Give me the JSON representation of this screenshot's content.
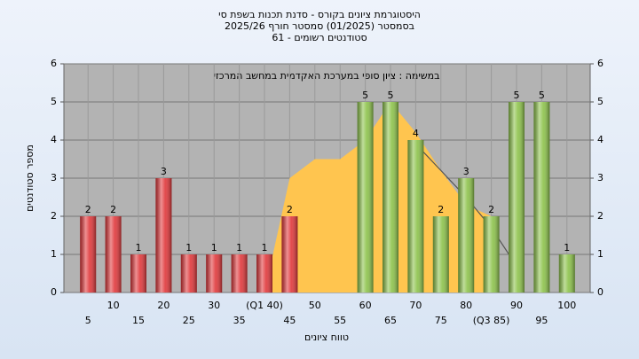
{
  "chart_data": {
    "type": "bar",
    "title": "היסטוגרמת ציונים בקורס - סדנת תכנות בשפת סי",
    "subtitle": [
      "בסמסטר  (01/2025)  סמסטר חורף 2025/26",
      "סטודנטים רשומים - 61"
    ],
    "annotation": "במשימה : ציון סופי במערכת האקדמית במחשב המרכזי",
    "x_label": "טווח ציונים",
    "y_label": "מספר סטודנטים",
    "categories": [
      "5",
      "10",
      "15",
      "20",
      "25",
      "30",
      "35",
      "(Q1 40)",
      "45",
      "50",
      "55",
      "60",
      "65",
      "70",
      "75",
      "80",
      "(Q3 85)",
      "90",
      "95",
      "100"
    ],
    "series": [
      {
        "type": "area",
        "color": "#ffc54f",
        "values": [
          null,
          null,
          null,
          null,
          null,
          null,
          null,
          0,
          3,
          3.5,
          3.5,
          4,
          5,
          4.2,
          3.2,
          2.3,
          2,
          null,
          null,
          null
        ]
      },
      {
        "type": "line",
        "color": "#555555",
        "values": [
          null,
          null,
          null,
          null,
          null,
          null,
          null,
          null,
          null,
          null,
          null,
          null,
          null,
          3.9,
          3.2,
          2.5,
          1.7,
          0.7,
          null,
          null
        ]
      },
      {
        "type": "bar",
        "color": "#e0373a",
        "values": [
          2,
          2,
          1,
          3,
          1,
          1,
          1,
          1,
          2,
          null,
          null,
          null,
          null,
          null,
          null,
          null,
          null,
          null,
          null,
          null
        ]
      },
      {
        "type": "bar",
        "color": "#8cc24a",
        "values": [
          null,
          null,
          null,
          null,
          null,
          null,
          null,
          null,
          null,
          null,
          null,
          5,
          5,
          4,
          2,
          3,
          2,
          5,
          5,
          1
        ]
      }
    ],
    "ylim": [
      0,
      6
    ],
    "yticks": [
      0,
      1,
      2,
      3,
      4,
      5,
      6
    ],
    "y2lim": [
      0,
      6
    ],
    "y2ticks": [
      0,
      1,
      2,
      3,
      4,
      5,
      6
    ],
    "grid": true
  }
}
